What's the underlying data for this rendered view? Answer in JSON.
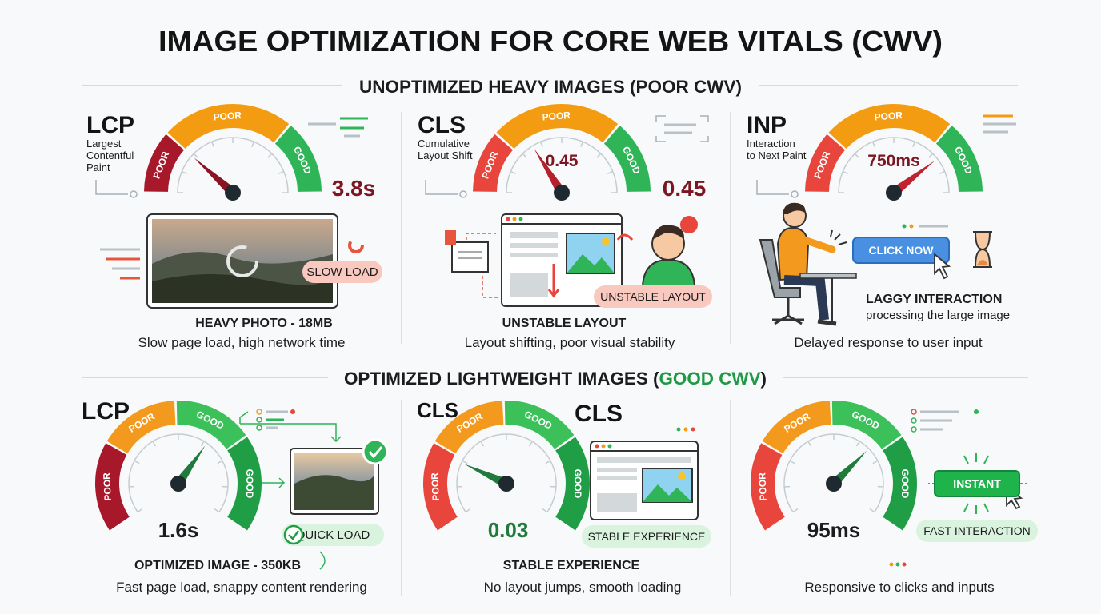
{
  "title": "IMAGE OPTIMIZATION FOR CORE WEB VITALS (CWV)",
  "sections": [
    {
      "heading": "UNOPTIMIZED HEAVY IMAGES (POOR CWV)",
      "panels": [
        {
          "metric": "LCP",
          "metric_desc": [
            "Largest",
            "Contentful",
            "Paint"
          ],
          "gauge_labels": [
            "POOR",
            "POOR",
            "GOOD"
          ],
          "value": "3.8s",
          "badge": "SLOW LOAD",
          "caption_title": "HEAVY PHOTO - 18MB",
          "caption": "Slow page load, high network time"
        },
        {
          "metric": "CLS",
          "metric_desc": [
            "Cumulative",
            "Layout Shift"
          ],
          "gauge_labels": [
            "POOR",
            "POOR",
            "GOOD"
          ],
          "gauge_value": "0.45",
          "value": "0.45",
          "badge": "UNSTABLE LAYOUT",
          "caption_title": "UNSTABLE LAYOUT",
          "caption": "Layout shifting, poor visual stability"
        },
        {
          "metric": "INP",
          "metric_desc": [
            "Interaction",
            "to Next Paint"
          ],
          "gauge_labels": [
            "POOR",
            "POOR",
            "GOOD"
          ],
          "gauge_value": "750ms",
          "button": "CLICK NOW",
          "note_title": "LAGGY INTERACTION",
          "note": "processing the large image",
          "caption": "Delayed response to user input"
        }
      ]
    },
    {
      "heading_parts": [
        "OPTIMIZED LIGHTWEIGHT IMAGES (",
        "GOOD CWV",
        ")"
      ],
      "panels": [
        {
          "metric": "LCP",
          "gauge_labels": [
            "POOR",
            "POOR",
            "GOOD",
            "GOOD"
          ],
          "value": "1.6s",
          "badge": "QUICK LOAD",
          "caption_title": "OPTIMIZED IMAGE - 350KB",
          "caption": "Fast page load, snappy content rendering"
        },
        {
          "metric": "CLS",
          "metric_alt": "CLS",
          "gauge_labels": [
            "POOR",
            "POOR",
            "GOOD",
            "GOOD"
          ],
          "value": "0.03",
          "badge": "STABLE EXPERIENCE",
          "caption_title": "STABLE EXPERIENCE",
          "caption": "No layout jumps, smooth loading"
        },
        {
          "gauge_labels": [
            "POOR",
            "POOR",
            "GOOD",
            "GOOD"
          ],
          "value": "95ms",
          "button": "INSTANT",
          "badge": "FAST INTERACTION",
          "caption": "Responsive to clicks and inputs"
        }
      ]
    }
  ]
}
